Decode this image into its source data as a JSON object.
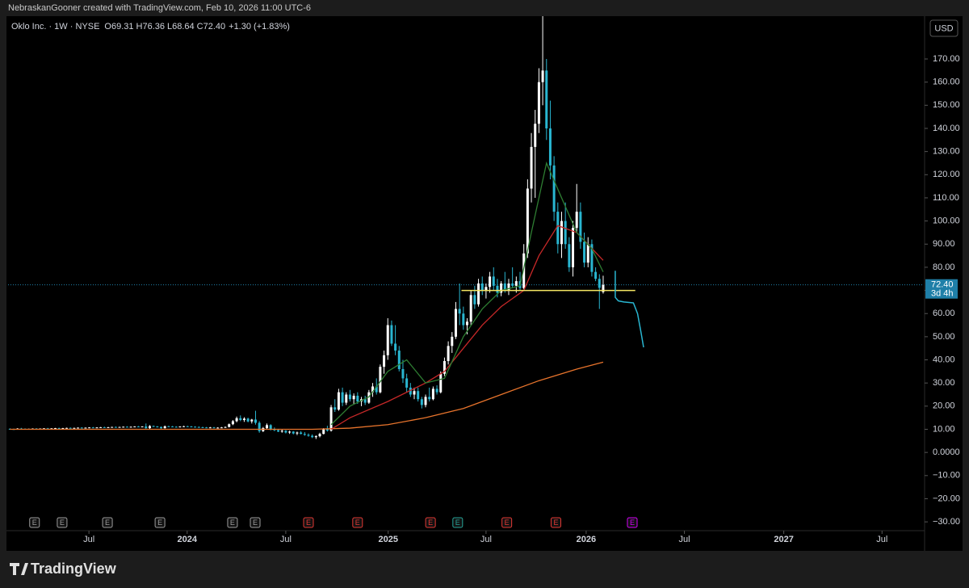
{
  "header": {
    "attribution": "NebraskanGooner created with TradingView.com, Feb 10, 2026 11:00 UTC-6",
    "currency_button": "USD",
    "brand": "TradingView"
  },
  "chart_data": {
    "type": "candlestick",
    "symbol": "Oklo Inc. · 1W · NYSE",
    "ohlc_legend": [
      {
        "prefix": "O",
        "value": 69.31
      },
      {
        "prefix": "H",
        "value": 76.36
      },
      {
        "prefix": "L",
        "value": 68.64
      },
      {
        "prefix": "C",
        "value": 72.4
      }
    ],
    "change": "+1.30 (+1.83%)",
    "up_color": "#ffffff",
    "down_color": "#29b6d1",
    "candles": [
      [
        10.2,
        10.4,
        9.9,
        10.1
      ],
      [
        10.1,
        10.3,
        9.8,
        10.0
      ],
      [
        10.0,
        10.5,
        9.9,
        10.3
      ],
      [
        10.3,
        10.6,
        10.0,
        10.2
      ],
      [
        10.2,
        10.4,
        9.9,
        10.1
      ],
      [
        10.1,
        10.3,
        9.9,
        10.2
      ],
      [
        10.2,
        10.4,
        10.0,
        10.3
      ],
      [
        10.3,
        10.5,
        10.1,
        10.2
      ],
      [
        10.2,
        10.4,
        10.0,
        10.3
      ],
      [
        10.3,
        10.5,
        10.1,
        10.4
      ],
      [
        10.4,
        10.6,
        10.2,
        10.3
      ],
      [
        10.3,
        10.5,
        10.1,
        10.4
      ],
      [
        10.4,
        10.6,
        10.2,
        10.5
      ],
      [
        10.5,
        10.7,
        10.3,
        10.4
      ],
      [
        10.4,
        10.6,
        10.2,
        10.5
      ],
      [
        10.5,
        10.7,
        10.3,
        10.6
      ],
      [
        10.6,
        10.8,
        10.4,
        10.5
      ],
      [
        10.5,
        10.7,
        10.3,
        10.6
      ],
      [
        10.6,
        10.8,
        10.4,
        10.7
      ],
      [
        10.7,
        10.9,
        10.5,
        10.6
      ],
      [
        10.6,
        10.8,
        10.4,
        10.7
      ],
      [
        10.7,
        10.9,
        10.5,
        10.8
      ],
      [
        10.8,
        11.0,
        10.6,
        10.7
      ],
      [
        10.7,
        10.9,
        10.5,
        10.8
      ],
      [
        10.8,
        11.0,
        10.6,
        10.9
      ],
      [
        10.9,
        11.1,
        10.7,
        10.8
      ],
      [
        10.8,
        11.0,
        10.6,
        10.9
      ],
      [
        10.9,
        11.1,
        10.7,
        11.0
      ],
      [
        11.0,
        11.2,
        10.8,
        10.9
      ],
      [
        10.9,
        11.1,
        10.7,
        11.0
      ],
      [
        11.0,
        11.2,
        10.8,
        11.1
      ],
      [
        11.1,
        11.3,
        10.9,
        11.0
      ],
      [
        11.0,
        11.2,
        10.8,
        11.1
      ],
      [
        11.1,
        11.3,
        10.9,
        11.2
      ],
      [
        11.2,
        11.4,
        11.0,
        11.1
      ],
      [
        11.1,
        11.3,
        10.9,
        11.2
      ],
      [
        11.2,
        12.5,
        10.2,
        10.5
      ],
      [
        10.5,
        11.8,
        10.0,
        11.4
      ],
      [
        11.4,
        11.6,
        11.0,
        11.2
      ],
      [
        11.2,
        11.4,
        10.8,
        11.0
      ],
      [
        11.0,
        11.2,
        10.2,
        10.5
      ],
      [
        10.5,
        11.6,
        10.3,
        11.3
      ],
      [
        11.3,
        11.5,
        11.0,
        11.2
      ],
      [
        11.2,
        11.4,
        10.9,
        11.1
      ],
      [
        11.1,
        11.3,
        10.8,
        11.0
      ],
      [
        11.0,
        11.3,
        10.8,
        11.2
      ],
      [
        11.2,
        11.5,
        11.0,
        11.3
      ],
      [
        11.3,
        11.5,
        11.0,
        11.2
      ],
      [
        11.2,
        11.4,
        10.9,
        11.1
      ],
      [
        11.1,
        11.3,
        10.8,
        11.0
      ],
      [
        11.0,
        11.2,
        10.7,
        10.9
      ],
      [
        10.9,
        11.1,
        10.6,
        10.8
      ],
      [
        10.8,
        11.0,
        10.5,
        10.7
      ],
      [
        10.7,
        11.0,
        10.5,
        10.8
      ],
      [
        10.8,
        11.0,
        10.5,
        10.6
      ],
      [
        10.6,
        10.9,
        10.4,
        10.7
      ],
      [
        10.7,
        11.0,
        10.5,
        10.8
      ],
      [
        10.8,
        11.2,
        10.6,
        11.0
      ],
      [
        11.0,
        12.5,
        10.8,
        12.2
      ],
      [
        12.2,
        14.0,
        11.8,
        13.5
      ],
      [
        13.5,
        15.5,
        13.0,
        14.8
      ],
      [
        14.8,
        16.0,
        13.5,
        14.0
      ],
      [
        14.0,
        15.2,
        13.2,
        14.6
      ],
      [
        14.6,
        15.0,
        13.0,
        13.4
      ],
      [
        13.4,
        14.5,
        12.5,
        14.2
      ],
      [
        14.2,
        18.0,
        12.0,
        12.8
      ],
      [
        12.8,
        13.5,
        8.5,
        9.2
      ],
      [
        9.2,
        11.0,
        8.8,
        10.5
      ],
      [
        10.5,
        12.5,
        10.0,
        11.8
      ],
      [
        11.8,
        12.2,
        9.5,
        10.0
      ],
      [
        10.0,
        10.8,
        9.2,
        9.6
      ],
      [
        9.6,
        10.2,
        8.8,
        9.0
      ],
      [
        9.0,
        9.8,
        8.5,
        9.4
      ],
      [
        9.4,
        9.6,
        8.2,
        8.6
      ],
      [
        8.6,
        9.4,
        8.0,
        9.0
      ],
      [
        9.0,
        9.2,
        7.8,
        8.2
      ],
      [
        8.2,
        9.0,
        7.5,
        8.6
      ],
      [
        8.6,
        9.2,
        7.8,
        8.0
      ],
      [
        8.0,
        8.8,
        7.2,
        7.6
      ],
      [
        7.6,
        8.2,
        6.8,
        7.2
      ],
      [
        7.2,
        7.8,
        6.2,
        6.6
      ],
      [
        6.6,
        7.4,
        5.8,
        7.0
      ],
      [
        7.0,
        8.5,
        6.5,
        8.0
      ],
      [
        8.0,
        10.5,
        7.8,
        10.0
      ],
      [
        10.0,
        11.5,
        9.0,
        9.4
      ],
      [
        9.4,
        20.5,
        9.0,
        19.5
      ],
      [
        19.5,
        23.0,
        17.5,
        18.5
      ],
      [
        18.5,
        27.5,
        18.0,
        26.0
      ],
      [
        26.0,
        28.0,
        20.0,
        21.5
      ],
      [
        21.5,
        26.0,
        20.5,
        25.0
      ],
      [
        25.0,
        27.0,
        22.0,
        23.0
      ],
      [
        23.0,
        25.5,
        21.0,
        24.5
      ],
      [
        24.5,
        26.0,
        21.0,
        22.0
      ],
      [
        22.0,
        24.0,
        20.0,
        23.0
      ],
      [
        23.0,
        24.5,
        20.5,
        21.5
      ],
      [
        21.5,
        27.0,
        21.0,
        26.0
      ],
      [
        26.0,
        30.0,
        24.0,
        28.5
      ],
      [
        28.5,
        32.0,
        25.0,
        26.0
      ],
      [
        26.0,
        38.0,
        25.5,
        37.0
      ],
      [
        37.0,
        44.0,
        34.0,
        42.0
      ],
      [
        42.0,
        58.0,
        40.0,
        55.0
      ],
      [
        55.0,
        57.0,
        46.0,
        47.0
      ],
      [
        47.0,
        55.0,
        42.0,
        44.0
      ],
      [
        44.0,
        46.0,
        35.0,
        36.0
      ],
      [
        36.0,
        40.0,
        30.0,
        32.0
      ],
      [
        32.0,
        34.0,
        26.0,
        28.0
      ],
      [
        28.0,
        30.0,
        24.0,
        25.0
      ],
      [
        25.0,
        28.0,
        23.0,
        26.5
      ],
      [
        26.5,
        28.0,
        22.0,
        23.0
      ],
      [
        23.0,
        24.0,
        19.0,
        20.5
      ],
      [
        20.5,
        25.0,
        19.5,
        24.0
      ],
      [
        24.0,
        28.0,
        22.0,
        23.0
      ],
      [
        23.0,
        28.5,
        22.5,
        27.5
      ],
      [
        27.5,
        29.0,
        25.0,
        26.0
      ],
      [
        26.0,
        35.0,
        25.5,
        34.0
      ],
      [
        34.0,
        41.0,
        33.0,
        39.5
      ],
      [
        39.5,
        48.0,
        38.0,
        46.0
      ],
      [
        46.0,
        52.0,
        43.0,
        50.0
      ],
      [
        50.0,
        65.0,
        49.0,
        62.0
      ],
      [
        62.0,
        73.0,
        55.0,
        60.0
      ],
      [
        60.0,
        63.0,
        53.0,
        55.0
      ],
      [
        55.0,
        58.0,
        51.0,
        56.5
      ],
      [
        56.5,
        70.0,
        55.0,
        68.0
      ],
      [
        68.0,
        72.0,
        62.0,
        64.0
      ],
      [
        64.0,
        75.0,
        63.0,
        73.0
      ],
      [
        73.0,
        76.0,
        68.0,
        70.0
      ],
      [
        70.0,
        73.0,
        66.5,
        71.5
      ],
      [
        71.5,
        78.0,
        69.0,
        76.0
      ],
      [
        76.0,
        80.0,
        70.0,
        72.0
      ],
      [
        72.0,
        75.0,
        67.0,
        69.0
      ],
      [
        69.0,
        74.0,
        67.5,
        73.0
      ],
      [
        73.0,
        78.0,
        69.0,
        70.0
      ],
      [
        70,
        75,
        68,
        73
      ],
      [
        73,
        80,
        71,
        72
      ],
      [
        72,
        76,
        69,
        74
      ],
      [
        74,
        78,
        70,
        71
      ],
      [
        71,
        90,
        70.5,
        86
      ],
      [
        86,
        118,
        84,
        114
      ],
      [
        114,
        138,
        108,
        132
      ],
      [
        132,
        148,
        110,
        142
      ],
      [
        142,
        166,
        138,
        160
      ],
      [
        160,
        193,
        150,
        165
      ],
      [
        165,
        170,
        135,
        140
      ],
      [
        140,
        152,
        118,
        124
      ],
      [
        124,
        128,
        100,
        104
      ],
      [
        104,
        108,
        86,
        90
      ],
      [
        90,
        104,
        84,
        100
      ],
      [
        100,
        108,
        88,
        90
      ],
      [
        90,
        93,
        78,
        80
      ],
      [
        80,
        100,
        76,
        97
      ],
      [
        97,
        116,
        95,
        104
      ],
      [
        104,
        108,
        88,
        91
      ],
      [
        91,
        95,
        80,
        82
      ],
      [
        82,
        93,
        80,
        90
      ],
      [
        90,
        92,
        76,
        78
      ],
      [
        78,
        80,
        74,
        75
      ],
      [
        75,
        77,
        62,
        71.1
      ],
      [
        69.31,
        76.36,
        68.64,
        72.4
      ]
    ],
    "moving_averages": [
      {
        "color": "#e8742c",
        "x": [
          0,
          60,
          80,
          90,
          100,
          110,
          120,
          130,
          140,
          150,
          157
        ],
        "values": [
          10,
          10,
          10,
          10.5,
          12,
          15,
          19,
          25,
          31,
          36,
          39
        ]
      },
      {
        "color": "#c62828",
        "x": [
          85,
          90,
          100,
          110,
          115,
          120,
          125,
          130,
          136,
          140,
          145,
          150,
          157
        ],
        "values": [
          10,
          15,
          22,
          30,
          35,
          45,
          55,
          63,
          70,
          85,
          98,
          95,
          83
        ]
      },
      {
        "color": "#2e7d32",
        "x": [
          85,
          90,
          95,
          100,
          105,
          110,
          115,
          120,
          125,
          130,
          135,
          138,
          142,
          146,
          150,
          154,
          157
        ],
        "values": [
          12,
          20,
          24,
          35,
          40,
          30,
          32,
          50,
          62,
          70,
          72,
          95,
          125,
          110,
          95,
          88,
          78
        ]
      }
    ],
    "support_line": {
      "color": "#f5e663",
      "x": [
        120,
        166
      ],
      "value": 70
    },
    "projection": {
      "color": "#29b6d1",
      "x": [
        160.7,
        160.7,
        161.5,
        163,
        165.5,
        166.6,
        167.5,
        168.2
      ],
      "values": [
        78.5,
        67,
        65.5,
        65,
        64.6,
        60,
        52,
        45.4
      ]
    },
    "last_price": {
      "value": 72.4,
      "countdown": "3d 4h",
      "color": "#1f7fa8"
    },
    "earnings": {
      "label": "E",
      "x": [
        7,
        14.3,
        26.3,
        40.2,
        59.4,
        65.4,
        79.5,
        92.5,
        111.8,
        119,
        132,
        145,
        165.2
      ],
      "colors": [
        "#9e9e9e",
        "#9e9e9e",
        "#9e9e9e",
        "#9e9e9e",
        "#9e9e9e",
        "#9e9e9e",
        "#e53935",
        "#e53935",
        "#e53935",
        "#26a69a",
        "#e53935",
        "#e53935",
        "#d500f9"
      ]
    },
    "xlim": [
      0,
      241.5
    ],
    "xticks": [
      {
        "value": 21.4,
        "label": "Jul"
      },
      {
        "value": 47.4,
        "label": "2024"
      },
      {
        "value": 73.5,
        "label": "Jul"
      },
      {
        "value": 100.6,
        "label": "2025"
      },
      {
        "value": 126.5,
        "label": "Jul"
      },
      {
        "value": 153,
        "label": "2026"
      },
      {
        "value": 179,
        "label": "Jul"
      },
      {
        "value": 205.3,
        "label": "2027"
      },
      {
        "value": 231.3,
        "label": "Jul"
      }
    ],
    "ylim": [
      -33.1,
      188.5
    ],
    "yticks": [
      {
        "value": 170,
        "label": "170.00"
      },
      {
        "value": 160,
        "label": "160.00"
      },
      {
        "value": 150,
        "label": "150.00"
      },
      {
        "value": 140,
        "label": "140.00"
      },
      {
        "value": 130,
        "label": "130.00"
      },
      {
        "value": 120,
        "label": "120.00"
      },
      {
        "value": 110,
        "label": "110.00"
      },
      {
        "value": 100,
        "label": "100.00"
      },
      {
        "value": 90,
        "label": "90.00"
      },
      {
        "value": 80,
        "label": "80.00"
      },
      {
        "value": 70,
        "label": "70.00"
      },
      {
        "value": 60,
        "label": "60.00"
      },
      {
        "value": 50,
        "label": "50.00"
      },
      {
        "value": 40,
        "label": "40.00"
      },
      {
        "value": 30,
        "label": "30.00"
      },
      {
        "value": 20,
        "label": "20.00"
      },
      {
        "value": 10,
        "label": "10.00"
      },
      {
        "value": 0,
        "label": "0.0000"
      },
      {
        "value": -10,
        "label": "−10.00"
      },
      {
        "value": -20,
        "label": "−20.00"
      },
      {
        "value": -30,
        "label": "−30.00"
      }
    ]
  }
}
